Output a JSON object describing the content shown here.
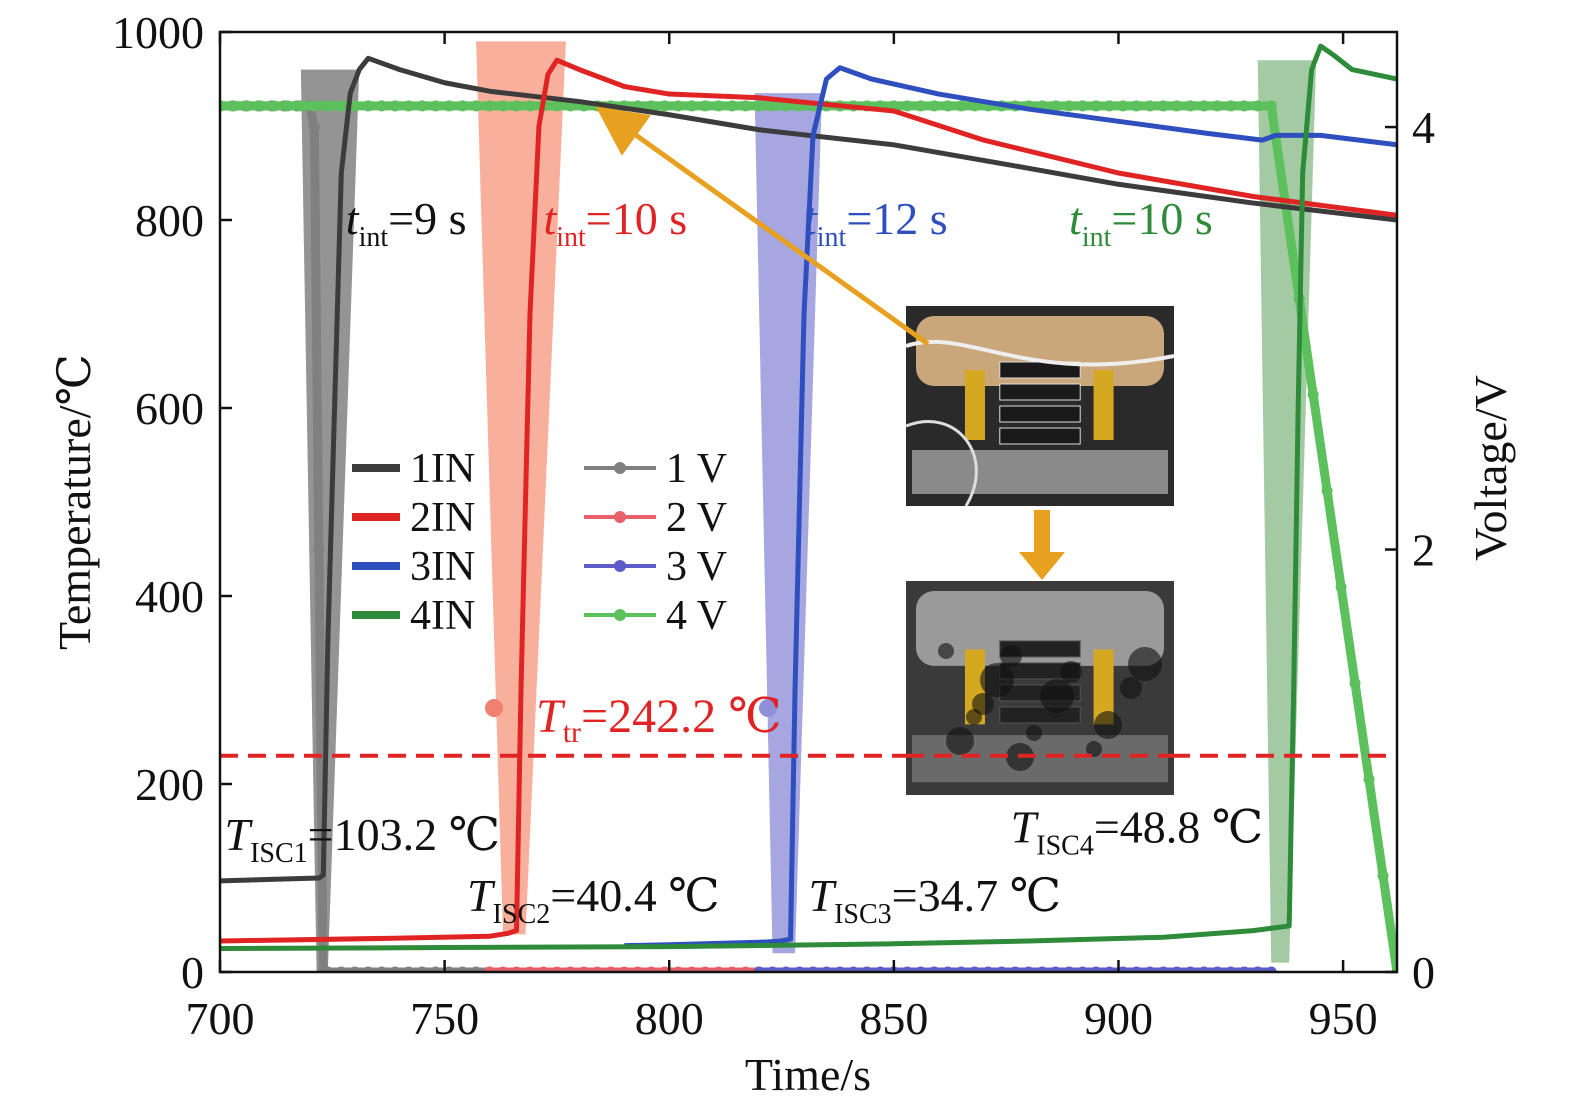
{
  "chart_data": {
    "type": "line",
    "xlabel": "Time/s",
    "ylabel": "Temperature/℃",
    "y2label": "Voltage/V",
    "xlim": [
      700,
      962
    ],
    "ylim": [
      0,
      1000
    ],
    "y2lim": [
      0,
      4.45
    ],
    "xticks": [
      700,
      750,
      800,
      850,
      900,
      950
    ],
    "yticks": [
      0,
      200,
      400,
      600,
      800,
      1000
    ],
    "y2ticks": [
      0,
      2,
      4
    ],
    "temperature_series": [
      {
        "name": "1IN",
        "color": "#3c3c3c",
        "x": [
          700,
          722,
          723,
          724,
          727,
          729,
          731,
          733,
          740,
          750,
          760,
          780,
          800,
          820,
          850,
          880,
          900,
          930,
          962
        ],
        "y": [
          97,
          100,
          103,
          350,
          850,
          935,
          960,
          972,
          960,
          946,
          937,
          926,
          912,
          896,
          880,
          855,
          838,
          818,
          800
        ]
      },
      {
        "name": "2IN",
        "color": "#e02424",
        "x": [
          700,
          740,
          760,
          764,
          766,
          767,
          769,
          771,
          773,
          775,
          780,
          790,
          800,
          820,
          850,
          870,
          900,
          930,
          962
        ],
        "y": [
          33,
          36,
          38,
          41,
          44,
          300,
          700,
          900,
          955,
          970,
          960,
          942,
          934,
          930,
          916,
          885,
          850,
          825,
          805
        ]
      },
      {
        "name": "3IN",
        "color": "#2f4fbf",
        "x": [
          790,
          800,
          822,
          825,
          827,
          828,
          830,
          832,
          835,
          838,
          845,
          860,
          880,
          900,
          920,
          932,
          935,
          945,
          962
        ],
        "y": [
          28,
          29,
          32,
          33,
          35,
          300,
          700,
          890,
          950,
          962,
          950,
          934,
          918,
          905,
          892,
          885,
          890,
          890,
          880
        ]
      },
      {
        "name": "4IN",
        "color": "#2e8b3a",
        "x": [
          700,
          750,
          800,
          850,
          880,
          910,
          930,
          938,
          939,
          940,
          941,
          943,
          945,
          948,
          952,
          962
        ],
        "y": [
          25,
          26,
          27,
          30,
          33,
          37,
          44,
          49,
          300,
          600,
          850,
          960,
          985,
          975,
          960,
          950
        ]
      }
    ],
    "voltage_series": [
      {
        "name": "1 V",
        "color": "#808080",
        "x": [
          700,
          720,
          721,
          722,
          723,
          724,
          760
        ],
        "y": [
          4.1,
          4.1,
          4.0,
          2.0,
          -0.1,
          0.0,
          0.0
        ]
      },
      {
        "name": "2 V",
        "color": "#e8606a",
        "x": [
          760,
          820
        ],
        "y": [
          0.0,
          0.0
        ]
      },
      {
        "name": "3 V",
        "color": "#5c5cc8",
        "x": [
          820,
          934
        ],
        "y": [
          0.0,
          0.0
        ]
      },
      {
        "name": "4 V",
        "color": "#5cc05c",
        "x": [
          700,
          934,
          962
        ],
        "y": [
          4.1,
          4.1,
          0.0
        ]
      }
    ],
    "threshold": {
      "label": "T",
      "subscript": "tr",
      "value": "=242.2 ℃",
      "y": 230,
      "color": "#e02424"
    },
    "shaded_regions": [
      {
        "color": "#3c3c3c",
        "x_bottom": [
          721.5,
          724
        ],
        "x_top": [
          718,
          731
        ],
        "y_bottom": 0,
        "y_top": 960
      },
      {
        "color": "#f2704a",
        "x_bottom": [
          763,
          768
        ],
        "x_top": [
          757,
          777
        ],
        "y_bottom": 40,
        "y_top": 990
      },
      {
        "color": "#5c5cc8",
        "x_bottom": [
          823,
          828
        ],
        "x_top": [
          819,
          834
        ],
        "y_bottom": 20,
        "y_top": 935
      },
      {
        "color": "#5a9e5a",
        "x_bottom": [
          934,
          938
        ],
        "x_top": [
          931,
          944
        ],
        "y_bottom": 10,
        "y_top": 970
      }
    ],
    "annotations": [
      {
        "main": "t",
        "sub": "int",
        "rest": "=9 s",
        "color": "#111111",
        "x": 728,
        "y": 785
      },
      {
        "main": "t",
        "sub": "int",
        "rest": "=10 s",
        "color": "#e02424",
        "x": 772,
        "y": 785
      },
      {
        "main": "t",
        "sub": "int",
        "rest": "=12 s",
        "color": "#2f4fbf",
        "x": 830,
        "y": 785
      },
      {
        "main": "t",
        "sub": "int",
        "rest": "=10 s",
        "color": "#2e8b3a",
        "x": 889,
        "y": 785
      },
      {
        "main": "T",
        "sub": "ISC1",
        "rest": "=103.2 ℃",
        "color": "#111111",
        "x": 701,
        "y": 130
      },
      {
        "main": "T",
        "sub": "ISC2",
        "rest": "=40.4 ℃",
        "color": "#111111",
        "x": 755,
        "y": 65
      },
      {
        "main": "T",
        "sub": "ISC3",
        "rest": "=34.7 ℃",
        "color": "#111111",
        "x": 831,
        "y": 65
      },
      {
        "main": "T",
        "sub": "ISC4",
        "rest": "=48.8 ℃",
        "color": "#111111",
        "x": 876,
        "y": 138
      }
    ],
    "legend": {
      "placement": "center-left",
      "temperature_entries": [
        "1IN",
        "2IN",
        "3IN",
        "4IN"
      ],
      "voltage_entries": [
        "1 V",
        "2 V",
        "3 V",
        "4 V"
      ]
    },
    "inset_photos": [
      "before-thermal-runaway",
      "after-thermal-runaway"
    ],
    "arrow_color": "#e8a020"
  }
}
